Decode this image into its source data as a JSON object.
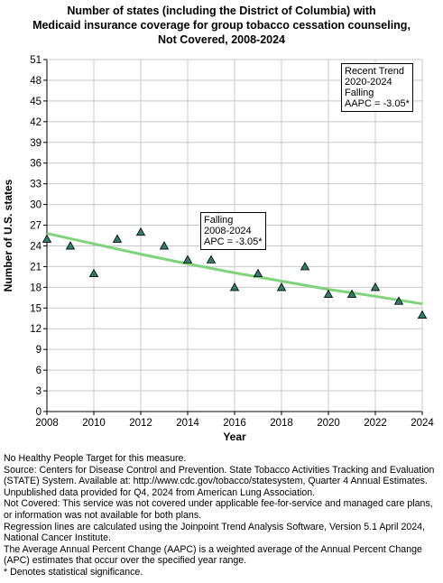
{
  "title_lines": [
    "Number of states (including the District of Columbia) with",
    "Medicaid insurance coverage for group tobacco cessation counseling,",
    "Not Covered,  2008-2024"
  ],
  "chart_data": {
    "type": "scatter",
    "title": "Number of states (including the District of Columbia) with Medicaid insurance coverage for group tobacco cessation counseling, Not Covered,  2008-2024",
    "xlabel": "Year",
    "ylabel": "Number of U.S. states",
    "xlim": [
      2008,
      2024
    ],
    "ylim": [
      0,
      51
    ],
    "xticks": [
      2008,
      2010,
      2012,
      2014,
      2016,
      2018,
      2020,
      2022,
      2024
    ],
    "yticks": [
      0,
      3,
      6,
      9,
      12,
      15,
      18,
      21,
      24,
      27,
      30,
      33,
      36,
      39,
      42,
      45,
      48,
      51
    ],
    "grid": true,
    "marker": "triangle",
    "marker_color": "#2e7d6b",
    "trend_color": "#7fd37a",
    "points": [
      {
        "x": 2008,
        "y": 25
      },
      {
        "x": 2009,
        "y": 24
      },
      {
        "x": 2010,
        "y": 20
      },
      {
        "x": 2011,
        "y": 25
      },
      {
        "x": 2012,
        "y": 26
      },
      {
        "x": 2013,
        "y": 24
      },
      {
        "x": 2014,
        "y": 22
      },
      {
        "x": 2015,
        "y": 22
      },
      {
        "x": 2016,
        "y": 18
      },
      {
        "x": 2017,
        "y": 20
      },
      {
        "x": 2018,
        "y": 18
      },
      {
        "x": 2019,
        "y": 21
      },
      {
        "x": 2020,
        "y": 17
      },
      {
        "x": 2021,
        "y": 17
      },
      {
        "x": 2022,
        "y": 18
      },
      {
        "x": 2023,
        "y": 16
      },
      {
        "x": 2024,
        "y": 14
      }
    ],
    "trend": [
      {
        "x": 2008,
        "y": 25.8
      },
      {
        "x": 2010,
        "y": 24.3
      },
      {
        "x": 2012,
        "y": 22.8
      },
      {
        "x": 2014,
        "y": 21.4
      },
      {
        "x": 2016,
        "y": 20.1
      },
      {
        "x": 2018,
        "y": 18.9
      },
      {
        "x": 2020,
        "y": 17.7
      },
      {
        "x": 2022,
        "y": 16.7
      },
      {
        "x": 2024,
        "y": 15.6
      }
    ],
    "annotations": [
      {
        "lines": [
          "Falling",
          "2008-2024",
          "APC = -3.05*"
        ]
      },
      {
        "lines": [
          "Recent Trend",
          "2020-2024",
          "Falling",
          "AAPC = -3.05*"
        ]
      }
    ]
  },
  "notes": [
    "No Healthy People Target for this measure.",
    "Source: Centers for Disease Control and Prevention. State Tobacco Activities Tracking and Evaluation (STATE) System. Available at: http://www.cdc.gov/tobacco/statesystem, Quarter 4 Annual Estimates.",
    "Unpublished data provided for Q4, 2024 from American Lung Association.",
    "Not Covered: This service was not covered under applicable fee-for-service and managed care plans, or information was not available for both plans.",
    "Regression lines are calculated using the Joinpoint Trend Analysis Software, Version 5.1 April 2024, National Cancer Institute.",
    "The Average Annual Percent Change (AAPC) is a weighted average of the Annual Percent Change (APC) estimates that occur over the specified year range.",
    "* Denotes statistical significance."
  ]
}
